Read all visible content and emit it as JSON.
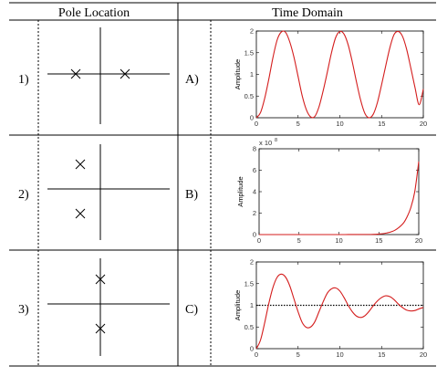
{
  "header": {
    "col1": "Pole Location",
    "col2": "Time Domain"
  },
  "rows": [
    {
      "number": "1)",
      "letter": "A)",
      "poles": [
        [
          -1.0,
          0.0
        ],
        [
          1.0,
          0.0
        ]
      ],
      "plot": {
        "ylabel": "Amplitude",
        "x_ticks": [
          "0",
          "5",
          "10",
          "15",
          "20"
        ],
        "y_ticks": [
          "0",
          "0.5",
          "1",
          "1.5",
          "2"
        ],
        "xlim": [
          0,
          20
        ],
        "ylim": [
          0,
          2
        ],
        "exponent_label": "",
        "reference_line": null,
        "series_color": "#d41d1d"
      }
    },
    {
      "number": "2)",
      "letter": "B)",
      "poles": [
        [
          -1.0,
          1.0
        ],
        [
          -1.0,
          -1.0
        ]
      ],
      "plot": {
        "ylabel": "Amplitude",
        "x_ticks": [
          "0",
          "5",
          "10",
          "15",
          "20"
        ],
        "y_ticks": [
          "0",
          "2",
          "4",
          "6",
          "8"
        ],
        "xlim": [
          0,
          20
        ],
        "ylim": [
          0,
          8
        ],
        "exponent_label": "x 10",
        "exponent_power": "8",
        "reference_line": null,
        "series_color": "#d41d1d"
      }
    },
    {
      "number": "3)",
      "letter": "C)",
      "poles": [
        [
          0.0,
          1.0
        ],
        [
          0.0,
          -1.0
        ]
      ],
      "plot": {
        "ylabel": "Amplitude",
        "x_ticks": [
          "0",
          "5",
          "10",
          "15",
          "20"
        ],
        "y_ticks": [
          "0",
          "0.5",
          "1",
          "1.5",
          "2"
        ],
        "xlim": [
          0,
          20
        ],
        "ylim": [
          0,
          2
        ],
        "exponent_label": "",
        "reference_line": 1,
        "series_color": "#d41d1d"
      }
    }
  ],
  "chart_data": [
    {
      "type": "line",
      "ylabel": "Amplitude",
      "xlim": [
        0,
        20
      ],
      "ylim": [
        0,
        2
      ],
      "series": [
        {
          "values": [
            [
              0,
              0
            ],
            [
              0.5,
              0.12
            ],
            [
              1,
              0.45
            ],
            [
              1.5,
              0.9
            ],
            [
              2,
              1.4
            ],
            [
              2.5,
              1.8
            ],
            [
              3,
              1.98
            ],
            [
              3.5,
              1.97
            ],
            [
              4,
              1.75
            ],
            [
              4.5,
              1.4
            ],
            [
              5,
              0.95
            ],
            [
              5.5,
              0.5
            ],
            [
              6,
              0.18
            ],
            [
              6.5,
              0.02
            ],
            [
              7,
              0.03
            ],
            [
              7.5,
              0.25
            ],
            [
              8,
              0.62
            ],
            [
              8.5,
              1.05
            ],
            [
              9,
              1.5
            ],
            [
              9.5,
              1.85
            ],
            [
              10,
              1.99
            ],
            [
              10.5,
              1.93
            ],
            [
              11,
              1.68
            ],
            [
              11.5,
              1.28
            ],
            [
              12,
              0.82
            ],
            [
              12.5,
              0.4
            ],
            [
              13,
              0.1
            ],
            [
              13.5,
              0.0
            ],
            [
              14,
              0.08
            ],
            [
              14.5,
              0.35
            ],
            [
              15,
              0.76
            ],
            [
              15.5,
              1.2
            ],
            [
              16,
              1.62
            ],
            [
              16.5,
              1.92
            ],
            [
              17,
              1.99
            ],
            [
              17.5,
              1.88
            ],
            [
              18,
              1.58
            ],
            [
              18.5,
              1.15
            ],
            [
              19,
              0.7
            ],
            [
              19.5,
              0.3
            ],
            [
              20,
              0.66
            ]
          ]
        }
      ]
    },
    {
      "type": "line",
      "ylabel": "Amplitude",
      "xlim": [
        0,
        20
      ],
      "ylim": [
        0,
        8
      ],
      "exponent": "x 10^8",
      "series": [
        {
          "values": [
            [
              0,
              0
            ],
            [
              5,
              0
            ],
            [
              10,
              0
            ],
            [
              14,
              0.01
            ],
            [
              15,
              0.05
            ],
            [
              16,
              0.15
            ],
            [
              17,
              0.4
            ],
            [
              18,
              1.0
            ],
            [
              18.5,
              1.6
            ],
            [
              19,
              2.5
            ],
            [
              19.5,
              4.0
            ],
            [
              20,
              6.8
            ]
          ]
        }
      ]
    },
    {
      "type": "line",
      "ylabel": "Amplitude",
      "xlim": [
        0,
        20
      ],
      "ylim": [
        0,
        2
      ],
      "reference_y": 1,
      "series": [
        {
          "values": [
            [
              0,
              0
            ],
            [
              0.5,
              0.2
            ],
            [
              1,
              0.6
            ],
            [
              1.5,
              1.05
            ],
            [
              2,
              1.42
            ],
            [
              2.5,
              1.65
            ],
            [
              3,
              1.72
            ],
            [
              3.5,
              1.65
            ],
            [
              4,
              1.45
            ],
            [
              4.5,
              1.15
            ],
            [
              5,
              0.85
            ],
            [
              5.5,
              0.6
            ],
            [
              6,
              0.49
            ],
            [
              6.5,
              0.5
            ],
            [
              7,
              0.62
            ],
            [
              7.5,
              0.85
            ],
            [
              8,
              1.08
            ],
            [
              8.5,
              1.28
            ],
            [
              9,
              1.38
            ],
            [
              9.5,
              1.4
            ],
            [
              10,
              1.33
            ],
            [
              10.5,
              1.18
            ],
            [
              11,
              1.0
            ],
            [
              11.5,
              0.85
            ],
            [
              12,
              0.75
            ],
            [
              12.5,
              0.72
            ],
            [
              13,
              0.76
            ],
            [
              13.5,
              0.86
            ],
            [
              14,
              0.99
            ],
            [
              14.5,
              1.1
            ],
            [
              15,
              1.18
            ],
            [
              15.5,
              1.22
            ],
            [
              16,
              1.2
            ],
            [
              16.5,
              1.13
            ],
            [
              17,
              1.03
            ],
            [
              17.5,
              0.95
            ],
            [
              18,
              0.89
            ],
            [
              18.5,
              0.87
            ],
            [
              19,
              0.88
            ],
            [
              19.5,
              0.92
            ],
            [
              20,
              0.95
            ]
          ]
        }
      ]
    }
  ]
}
